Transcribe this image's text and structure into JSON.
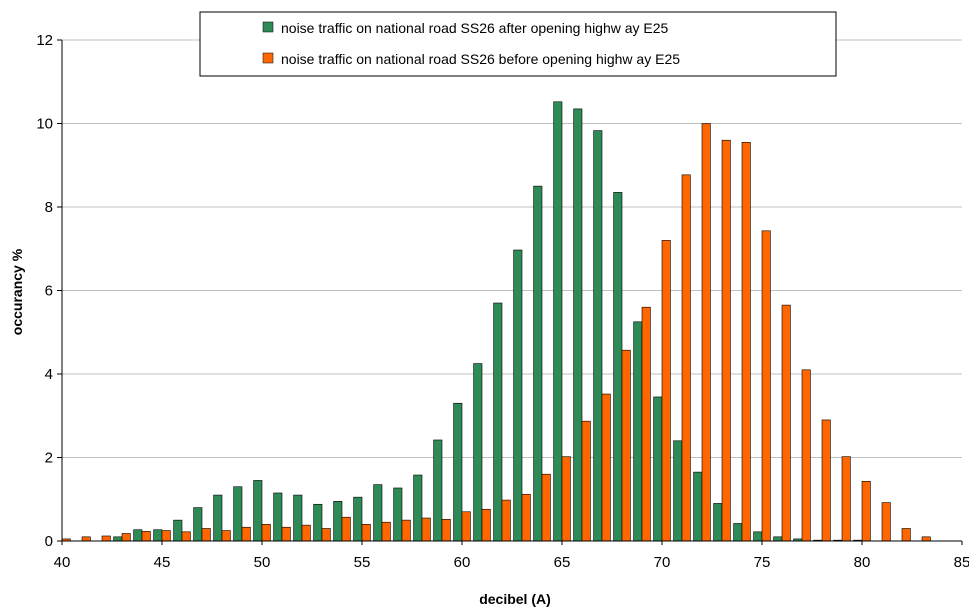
{
  "chart_data": {
    "type": "bar",
    "xlabel": "decibel (A)",
    "ylabel": "occurancy %",
    "xlim": [
      40,
      85
    ],
    "ylim": [
      0,
      12
    ],
    "x_ticks": [
      40,
      45,
      50,
      55,
      60,
      65,
      70,
      75,
      80,
      85
    ],
    "y_ticks": [
      0,
      2,
      4,
      6,
      8,
      10,
      12
    ],
    "grid": "horizontal",
    "legend_position": "top",
    "x": [
      40,
      41,
      42,
      43,
      44,
      45,
      46,
      47,
      48,
      49,
      50,
      51,
      52,
      53,
      54,
      55,
      56,
      57,
      58,
      59,
      60,
      61,
      62,
      63,
      64,
      65,
      66,
      67,
      68,
      69,
      70,
      71,
      72,
      73,
      74,
      75,
      76,
      77,
      78,
      79,
      80,
      81,
      82,
      83,
      84,
      85
    ],
    "series": [
      {
        "name": "noise traffic on national road SS26 after opening highw ay E25",
        "color": "#2E8B57",
        "values": [
          0,
          0,
          0,
          0.1,
          0.27,
          0.27,
          0.5,
          0.8,
          1.1,
          1.3,
          1.45,
          1.15,
          1.1,
          0.88,
          0.95,
          1.05,
          1.35,
          1.27,
          1.58,
          2.42,
          3.3,
          4.25,
          5.7,
          6.97,
          8.5,
          10.52,
          10.35,
          9.83,
          8.35,
          5.25,
          3.45,
          2.4,
          1.65,
          0.9,
          0.42,
          0.22,
          0.1,
          0.05,
          0.02,
          0.02,
          0.02,
          0,
          0,
          0,
          0,
          0
        ]
      },
      {
        "name": "noise traffic on national road SS26 before opening highw ay E25",
        "color": "#FF6600",
        "values": [
          0.05,
          0.1,
          0.12,
          0.18,
          0.23,
          0.25,
          0.22,
          0.3,
          0.25,
          0.33,
          0.4,
          0.33,
          0.38,
          0.3,
          0.57,
          0.4,
          0.45,
          0.5,
          0.55,
          0.52,
          0.7,
          0.76,
          0.98,
          1.12,
          1.6,
          2.02,
          2.87,
          3.52,
          4.57,
          5.6,
          7.2,
          8.77,
          10.0,
          9.6,
          9.55,
          7.43,
          5.65,
          4.1,
          2.9,
          2.02,
          1.43,
          0.92,
          0.3,
          0.1,
          0,
          0
        ]
      }
    ]
  }
}
